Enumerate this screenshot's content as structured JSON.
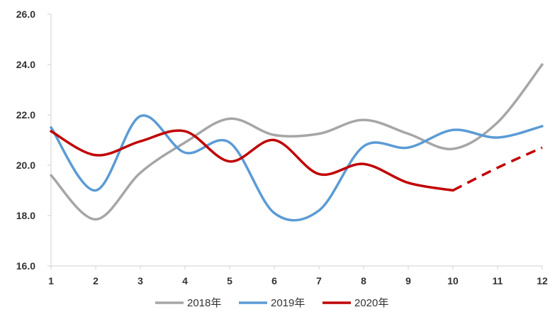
{
  "chart_data": {
    "type": "line",
    "title": "",
    "xlabel": "",
    "ylabel": "",
    "x": [
      1,
      2,
      3,
      4,
      5,
      6,
      7,
      8,
      9,
      10,
      11,
      12
    ],
    "x_tick_labels": [
      "1",
      "2",
      "3",
      "4",
      "5",
      "6",
      "7",
      "8",
      "9",
      "10",
      "11",
      "12"
    ],
    "ylim": [
      16.0,
      26.0
    ],
    "y_ticks": [
      16.0,
      18.0,
      20.0,
      22.0,
      24.0,
      26.0
    ],
    "y_tick_labels": [
      "16.0",
      "18.0",
      "20.0",
      "22.0",
      "24.0",
      "26.0"
    ],
    "grid": false,
    "smooth": true,
    "legend_position": "bottom",
    "series": [
      {
        "name": "2018年",
        "color": "#a6a6a6",
        "values": [
          19.6,
          17.85,
          19.7,
          20.9,
          21.85,
          21.2,
          21.25,
          21.8,
          21.25,
          20.65,
          21.7,
          24.0
        ]
      },
      {
        "name": "2019年",
        "color": "#5b9bd5",
        "values": [
          21.5,
          19.0,
          21.95,
          20.5,
          20.9,
          18.1,
          18.2,
          20.75,
          20.7,
          21.4,
          21.1,
          21.55
        ]
      },
      {
        "name": "2020年",
        "color": "#c00000",
        "values": [
          21.35,
          20.4,
          20.95,
          21.35,
          20.15,
          21.0,
          19.65,
          20.05,
          19.3,
          19.0,
          19.9,
          20.7
        ],
        "dashed_from_x": 10
      }
    ]
  }
}
